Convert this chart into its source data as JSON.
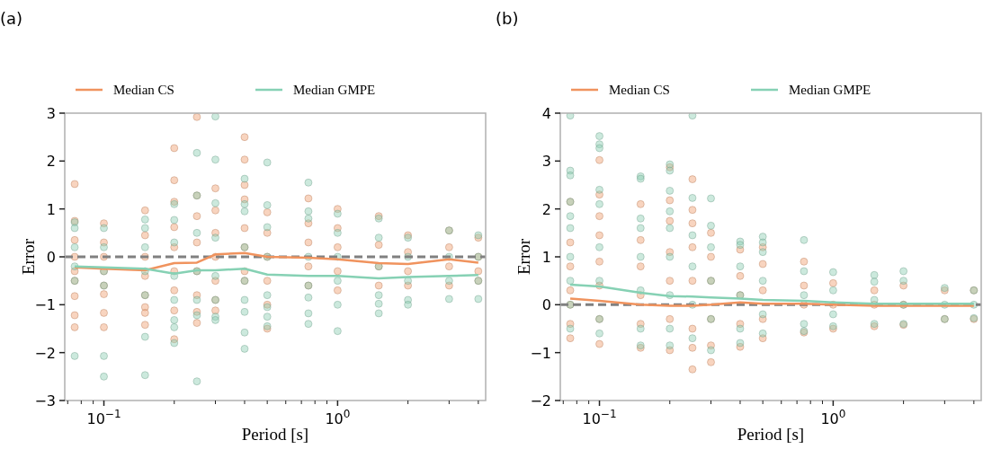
{
  "chart_data": [
    {
      "type": "scatter",
      "title": "(a)",
      "xlabel": "Period [s]",
      "ylabel": "Error",
      "log": "x",
      "xlim": [
        0.068,
        4.3
      ],
      "ylim": [
        -3,
        3
      ],
      "yticks": [
        -3,
        -2,
        -1,
        0,
        1,
        2,
        3
      ],
      "xticks": [
        {
          "value": 0.07,
          "label": null
        },
        {
          "value": 0.08,
          "label": null
        },
        {
          "value": 0.09,
          "label": null
        },
        {
          "value": 0.1,
          "label": "10$^{−1}$"
        },
        {
          "value": 0.2,
          "label": null
        },
        {
          "value": 0.3,
          "label": null
        },
        {
          "value": 0.4,
          "label": null
        },
        {
          "value": 0.5,
          "label": null
        },
        {
          "value": 0.6,
          "label": null
        },
        {
          "value": 0.7,
          "label": null
        },
        {
          "value": 0.8,
          "label": null
        },
        {
          "value": 0.9,
          "label": null
        },
        {
          "value": 1,
          "label": "10$^{0}$"
        },
        {
          "value": 2,
          "label": null
        },
        {
          "value": 3,
          "label": null
        },
        {
          "value": 4,
          "label": null
        }
      ],
      "legend": "top",
      "grid": false,
      "ref_lines": [
        {
          "axis": "y",
          "value": 0,
          "color": "#808080",
          "line_style": "dashed"
        }
      ],
      "series": [
        {
          "marker": "circle",
          "color": "#f0a070",
          "x": [
            0.075,
            0.075,
            0.075,
            0.075,
            0.075,
            0.075,
            0.075,
            0.075,
            0.075,
            0.1,
            0.1,
            0.1,
            0.1,
            0.1,
            0.1,
            0.1,
            0.1,
            0.15,
            0.15,
            0.15,
            0.15,
            0.15,
            0.15,
            0.15,
            0.15,
            0.2,
            0.2,
            0.2,
            0.2,
            0.2,
            0.2,
            0.2,
            0.2,
            0.2,
            0.25,
            0.25,
            0.25,
            0.25,
            0.25,
            0.25,
            0.25,
            0.25,
            0.3,
            0.3,
            0.3,
            0.3,
            0.3,
            0.3,
            0.3,
            0.4,
            0.4,
            0.4,
            0.4,
            0.4,
            0.4,
            0.4,
            0.4,
            0.5,
            0.5,
            0.5,
            0.5,
            0.5,
            0.5,
            0.75,
            0.75,
            0.75,
            0.75,
            0.75,
            1,
            1,
            1,
            1,
            1,
            1.5,
            1.5,
            1.5,
            1.5,
            2,
            2,
            2,
            2,
            3,
            3,
            3,
            3,
            4,
            4,
            4,
            4
          ],
          "values": [
            1.52,
            0.75,
            0.35,
            0,
            -0.3,
            -0.5,
            -0.82,
            -1.22,
            -1.47,
            0.7,
            0.3,
            0,
            -0.3,
            -0.6,
            -0.78,
            -1.17,
            -1.47,
            0.97,
            0.45,
            0,
            -0.4,
            -0.8,
            -1.05,
            -1.17,
            -1.42,
            2.27,
            1.6,
            1.15,
            0.62,
            0.2,
            -0.3,
            -0.7,
            -1.12,
            -1.72,
            2.92,
            1.28,
            0.85,
            0.3,
            -0.3,
            -0.8,
            -1.15,
            -1.38,
            1.43,
            0.97,
            0.5,
            0,
            -0.5,
            -0.9,
            -1.12,
            2.5,
            2.03,
            1.5,
            1.2,
            0.6,
            0.2,
            -0.3,
            -0.5,
            0.93,
            0.5,
            0,
            -0.5,
            -1,
            -1.5,
            1.22,
            0.7,
            0.3,
            -0.2,
            -0.6,
            1,
            0.6,
            0.2,
            -0.3,
            -0.7,
            0.85,
            0.25,
            -0.2,
            -0.6,
            0.45,
            0.1,
            -0.3,
            -0.6,
            0.55,
            0.2,
            -0.2,
            -0.6,
            0.4,
            0,
            -0.3,
            -0.5
          ]
        },
        {
          "marker": "circle",
          "color": "#8fcfb4",
          "x": [
            0.075,
            0.075,
            0.075,
            0.075,
            0.075,
            0.075,
            0.1,
            0.1,
            0.1,
            0.1,
            0.1,
            0.1,
            0.15,
            0.15,
            0.15,
            0.15,
            0.15,
            0.15,
            0.15,
            0.2,
            0.2,
            0.2,
            0.2,
            0.2,
            0.2,
            0.2,
            0.2,
            0.25,
            0.25,
            0.25,
            0.25,
            0.25,
            0.25,
            0.25,
            0.3,
            0.3,
            0.3,
            0.3,
            0.3,
            0.3,
            0.3,
            0.3,
            0.4,
            0.4,
            0.4,
            0.4,
            0.4,
            0.4,
            0.4,
            0.4,
            0.4,
            0.5,
            0.5,
            0.5,
            0.5,
            0.5,
            0.5,
            0.5,
            0.5,
            0.75,
            0.75,
            0.75,
            0.75,
            0.75,
            0.75,
            0.75,
            0.75,
            1,
            1,
            1,
            1,
            1,
            1,
            1.5,
            1.5,
            1.5,
            1.5,
            1.5,
            1.5,
            2,
            2,
            2,
            2,
            2,
            3,
            3,
            3,
            3,
            4,
            4,
            4,
            4
          ],
          "values": [
            0.72,
            0.6,
            0.2,
            -0.2,
            -0.5,
            -2.07,
            0.6,
            0.2,
            -0.3,
            -0.6,
            -2.07,
            -2.5,
            0.78,
            0.6,
            0.2,
            -0.3,
            -0.8,
            -1.67,
            -2.47,
            1.1,
            0.77,
            0.3,
            -0.4,
            -0.9,
            -1.32,
            -1.47,
            -1.8,
            2.17,
            1.28,
            0.5,
            -0.3,
            -0.9,
            -1.22,
            -2.6,
            2.93,
            2.03,
            1.12,
            0.4,
            -0.4,
            -0.9,
            -1.25,
            -1.32,
            1.63,
            1.1,
            0.95,
            0.2,
            -0.5,
            -0.9,
            -1.15,
            -1.58,
            -1.92,
            1.97,
            1.08,
            0.62,
            0,
            -0.8,
            -1.05,
            -1.25,
            -1.45,
            1.55,
            0.95,
            0.8,
            0,
            -0.6,
            -0.85,
            -1.18,
            -1.4,
            0.9,
            0.5,
            0,
            -0.5,
            -1,
            -1.55,
            0.8,
            0.4,
            -0.2,
            -0.8,
            -0.98,
            -1.18,
            0.4,
            0,
            -0.5,
            -0.9,
            -1,
            0.55,
            0,
            -0.5,
            -0.88,
            0.45,
            0,
            -0.5,
            -0.88
          ]
        },
        {
          "type": "line",
          "name": "Median CS",
          "color": "#f0935e",
          "x": [
            0.075,
            0.1,
            0.15,
            0.2,
            0.25,
            0.3,
            0.4,
            0.5,
            0.75,
            1,
            1.5,
            2,
            3,
            4
          ],
          "values": [
            -0.22,
            -0.25,
            -0.28,
            -0.13,
            -0.12,
            0.05,
            0.08,
            0,
            -0.02,
            -0.05,
            -0.13,
            -0.15,
            -0.05,
            -0.12
          ]
        },
        {
          "type": "line",
          "name": "Median GMPE",
          "color": "#86d1b4",
          "x": [
            0.075,
            0.1,
            0.15,
            0.2,
            0.25,
            0.3,
            0.4,
            0.5,
            0.75,
            1,
            1.5,
            2,
            3,
            4
          ],
          "values": [
            -0.2,
            -0.22,
            -0.25,
            -0.35,
            -0.28,
            -0.28,
            -0.25,
            -0.37,
            -0.4,
            -0.4,
            -0.45,
            -0.42,
            -0.4,
            -0.38
          ]
        }
      ]
    },
    {
      "type": "scatter",
      "title": "(b)",
      "xlabel": "Period [s]",
      "ylabel": "Error",
      "log": "x",
      "xlim": [
        0.068,
        4.3
      ],
      "ylim": [
        -2,
        4
      ],
      "yticks": [
        -2,
        -1,
        0,
        1,
        2,
        3,
        4
      ],
      "xticks": [
        {
          "value": 0.07,
          "label": null
        },
        {
          "value": 0.08,
          "label": null
        },
        {
          "value": 0.09,
          "label": null
        },
        {
          "value": 0.1,
          "label": "10$^{−1}$"
        },
        {
          "value": 0.2,
          "label": null
        },
        {
          "value": 0.3,
          "label": null
        },
        {
          "value": 0.4,
          "label": null
        },
        {
          "value": 0.5,
          "label": null
        },
        {
          "value": 0.6,
          "label": null
        },
        {
          "value": 0.7,
          "label": null
        },
        {
          "value": 0.8,
          "label": null
        },
        {
          "value": 0.9,
          "label": null
        },
        {
          "value": 1,
          "label": "10$^{0}$"
        },
        {
          "value": 2,
          "label": null
        },
        {
          "value": 3,
          "label": null
        },
        {
          "value": 4,
          "label": null
        }
      ],
      "legend": "top",
      "grid": false,
      "ref_lines": [
        {
          "axis": "y",
          "value": 0,
          "color": "#808080",
          "line_style": "dashed"
        }
      ],
      "series": [
        {
          "marker": "circle",
          "color": "#f0a070",
          "x": [
            0.075,
            0.075,
            0.075,
            0.075,
            0.075,
            0.075,
            0.075,
            0.1,
            0.1,
            0.1,
            0.1,
            0.1,
            0.1,
            0.1,
            0.1,
            0.15,
            0.15,
            0.15,
            0.15,
            0.15,
            0.15,
            0.2,
            0.2,
            0.2,
            0.2,
            0.2,
            0.2,
            0.2,
            0.25,
            0.25,
            0.25,
            0.25,
            0.25,
            0.25,
            0.25,
            0.25,
            0.3,
            0.3,
            0.3,
            0.3,
            0.3,
            0.3,
            0.4,
            0.4,
            0.4,
            0.4,
            0.4,
            0.5,
            0.5,
            0.5,
            0.5,
            0.5,
            0.75,
            0.75,
            0.75,
            0.75,
            1,
            1,
            1,
            1.5,
            1.5,
            1.5,
            2,
            2,
            2,
            3,
            3,
            4,
            4
          ],
          "values": [
            2.15,
            1.3,
            0.8,
            0.3,
            0,
            -0.4,
            -0.7,
            3.02,
            2.3,
            1.85,
            1.45,
            0.9,
            0.4,
            -0.3,
            -0.82,
            2.1,
            1.35,
            0.8,
            0.2,
            -0.4,
            -0.9,
            2.87,
            2.18,
            1.75,
            1.1,
            0.5,
            -0.3,
            -0.95,
            2.62,
            1.98,
            1.7,
            1.2,
            0.5,
            -0.5,
            -0.9,
            -1.35,
            1.5,
            1,
            0.5,
            -0.3,
            -0.85,
            -1.2,
            1.15,
            0.6,
            0.2,
            -0.4,
            -0.88,
            1.2,
            0.85,
            0.3,
            -0.3,
            -0.7,
            0.9,
            0.4,
            0,
            -0.58,
            0.45,
            0,
            -0.5,
            0.3,
            0,
            -0.45,
            0.4,
            0,
            -0.42,
            0.3,
            -0.3,
            0.3,
            -0.3
          ]
        },
        {
          "marker": "circle",
          "color": "#8fcfb4",
          "x": [
            0.075,
            0.075,
            0.075,
            0.075,
            0.075,
            0.075,
            0.075,
            0.075,
            0.075,
            0.075,
            0.1,
            0.1,
            0.1,
            0.1,
            0.1,
            0.1,
            0.1,
            0.1,
            0.1,
            0.15,
            0.15,
            0.15,
            0.15,
            0.15,
            0.15,
            0.15,
            0.15,
            0.2,
            0.2,
            0.2,
            0.2,
            0.2,
            0.2,
            0.2,
            0.2,
            0.2,
            0.25,
            0.25,
            0.25,
            0.25,
            0.25,
            0.25,
            0.3,
            0.3,
            0.3,
            0.3,
            0.3,
            0.3,
            0.4,
            0.4,
            0.4,
            0.4,
            0.4,
            0.4,
            0.5,
            0.5,
            0.5,
            0.5,
            0.5,
            0.5,
            0.75,
            0.75,
            0.75,
            0.75,
            0.75,
            1,
            1,
            1,
            1,
            1.5,
            1.5,
            1.5,
            1.5,
            2,
            2,
            2,
            2,
            3,
            3,
            3,
            4,
            4,
            4
          ],
          "values": [
            3.95,
            2.8,
            2.7,
            2.15,
            1.85,
            1.6,
            1,
            0.5,
            0,
            -0.5,
            3.52,
            3.35,
            3.27,
            2.4,
            2.1,
            1.2,
            0.5,
            -0.3,
            -0.6,
            2.68,
            2.63,
            1.8,
            1.6,
            1,
            0.3,
            -0.5,
            -0.85,
            2.93,
            2.8,
            2.38,
            1.95,
            1.6,
            1,
            0.2,
            -0.5,
            -0.85,
            3.95,
            2.23,
            1.45,
            0.8,
            0,
            -0.7,
            2.22,
            1.65,
            1.2,
            0.5,
            -0.3,
            -0.95,
            1.32,
            1.25,
            0.8,
            0.2,
            -0.5,
            -0.8,
            1.42,
            1.3,
            1.1,
            0.5,
            -0.2,
            -0.6,
            1.35,
            0.7,
            0.2,
            -0.4,
            -0.55,
            0.68,
            0.3,
            -0.2,
            -0.45,
            0.62,
            0.48,
            0.1,
            -0.4,
            0.7,
            0.5,
            0,
            -0.4,
            0.35,
            0,
            -0.3,
            0.3,
            0,
            -0.28
          ]
        },
        {
          "type": "line",
          "name": "Median CS",
          "color": "#f0935e",
          "x": [
            0.075,
            0.1,
            0.15,
            0.2,
            0.25,
            0.3,
            0.4,
            0.5,
            0.75,
            1,
            1.5,
            2,
            3,
            4
          ],
          "values": [
            0.13,
            0.08,
            0,
            -0.02,
            -0.02,
            0,
            0.05,
            0.02,
            0.02,
            0,
            -0.02,
            -0.02,
            -0.02,
            -0.02
          ]
        },
        {
          "type": "line",
          "name": "Median GMPE",
          "color": "#86d1b4",
          "x": [
            0.075,
            0.1,
            0.15,
            0.2,
            0.25,
            0.3,
            0.4,
            0.5,
            0.75,
            1,
            1.5,
            2,
            3,
            4
          ],
          "values": [
            0.42,
            0.38,
            0.25,
            0.18,
            0.17,
            0.15,
            0.13,
            0.1,
            0.08,
            0.05,
            0.02,
            0.02,
            0.02,
            0.02
          ]
        }
      ]
    }
  ]
}
